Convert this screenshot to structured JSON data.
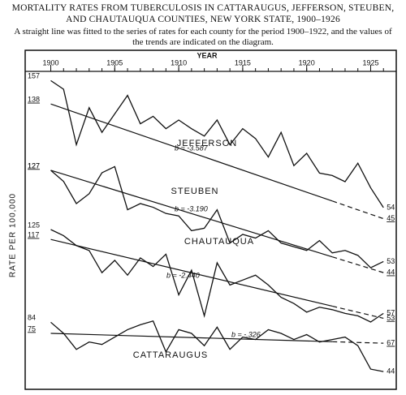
{
  "chart_data": {
    "type": "line",
    "title": "MORTALITY RATES FROM TUBERCULOSIS IN CATTARAUGUS, JEFFERSON, STEUBEN, AND CHAUTAUQUA COUNTIES, NEW YORK STATE, 1900–1926",
    "subtitle": "A straight line was fitted to the series of rates for each county for the period 1900–1922, and the values of the trends are indicated on the diagram.",
    "x_label": "YEAR",
    "y_label": "RATE PER 100,000",
    "x": [
      1900,
      1901,
      1902,
      1903,
      1904,
      1905,
      1906,
      1907,
      1908,
      1909,
      1910,
      1911,
      1912,
      1913,
      1914,
      1915,
      1916,
      1917,
      1918,
      1919,
      1920,
      1921,
      1922,
      1923,
      1924,
      1925,
      1926
    ],
    "xlim": [
      1898,
      1927
    ],
    "xticks": [
      1900,
      1905,
      1910,
      1915,
      1920,
      1925
    ],
    "trend_projected_from": 1922,
    "series": [
      {
        "name": "JEFFERSON",
        "color": "#111111",
        "values": [
          157,
          150,
          105,
          135,
          115,
          130,
          145,
          122,
          128,
          118,
          125,
          118,
          112,
          125,
          105,
          118,
          110,
          95,
          115,
          88,
          98,
          82,
          80,
          75,
          90,
          70,
          54
        ],
        "trend_values": [
          138,
          45
        ],
        "slope_label": "b = -3.587"
      },
      {
        "name": "STEUBEN",
        "color": "#111111",
        "values": [
          127,
          118,
          100,
          108,
          125,
          130,
          95,
          100,
          97,
          92,
          90,
          78,
          80,
          95,
          68,
          75,
          72,
          78,
          68,
          65,
          62,
          70,
          60,
          62,
          58,
          48,
          53
        ],
        "trend_values": [
          127,
          44
        ],
        "slope_label": "b = -3.190"
      },
      {
        "name": "CHAUTAUQUA",
        "color": "#111111",
        "values": [
          125,
          120,
          112,
          108,
          90,
          100,
          88,
          102,
          95,
          105,
          72,
          92,
          55,
          98,
          80,
          84,
          88,
          80,
          70,
          65,
          58,
          62,
          60,
          57,
          55,
          50,
          57
        ],
        "trend_values": [
          117,
          53
        ],
        "slope_label": "b = -2.440"
      },
      {
        "name": "CATTARAUGUS",
        "color": "#111111",
        "values": [
          84,
          75,
          62,
          68,
          66,
          72,
          78,
          82,
          85,
          60,
          78,
          75,
          65,
          80,
          62,
          72,
          70,
          78,
          75,
          70,
          74,
          68,
          70,
          72,
          65,
          46,
          44
        ],
        "trend_values": [
          75,
          67
        ],
        "slope_label": "b = -.326"
      }
    ]
  }
}
